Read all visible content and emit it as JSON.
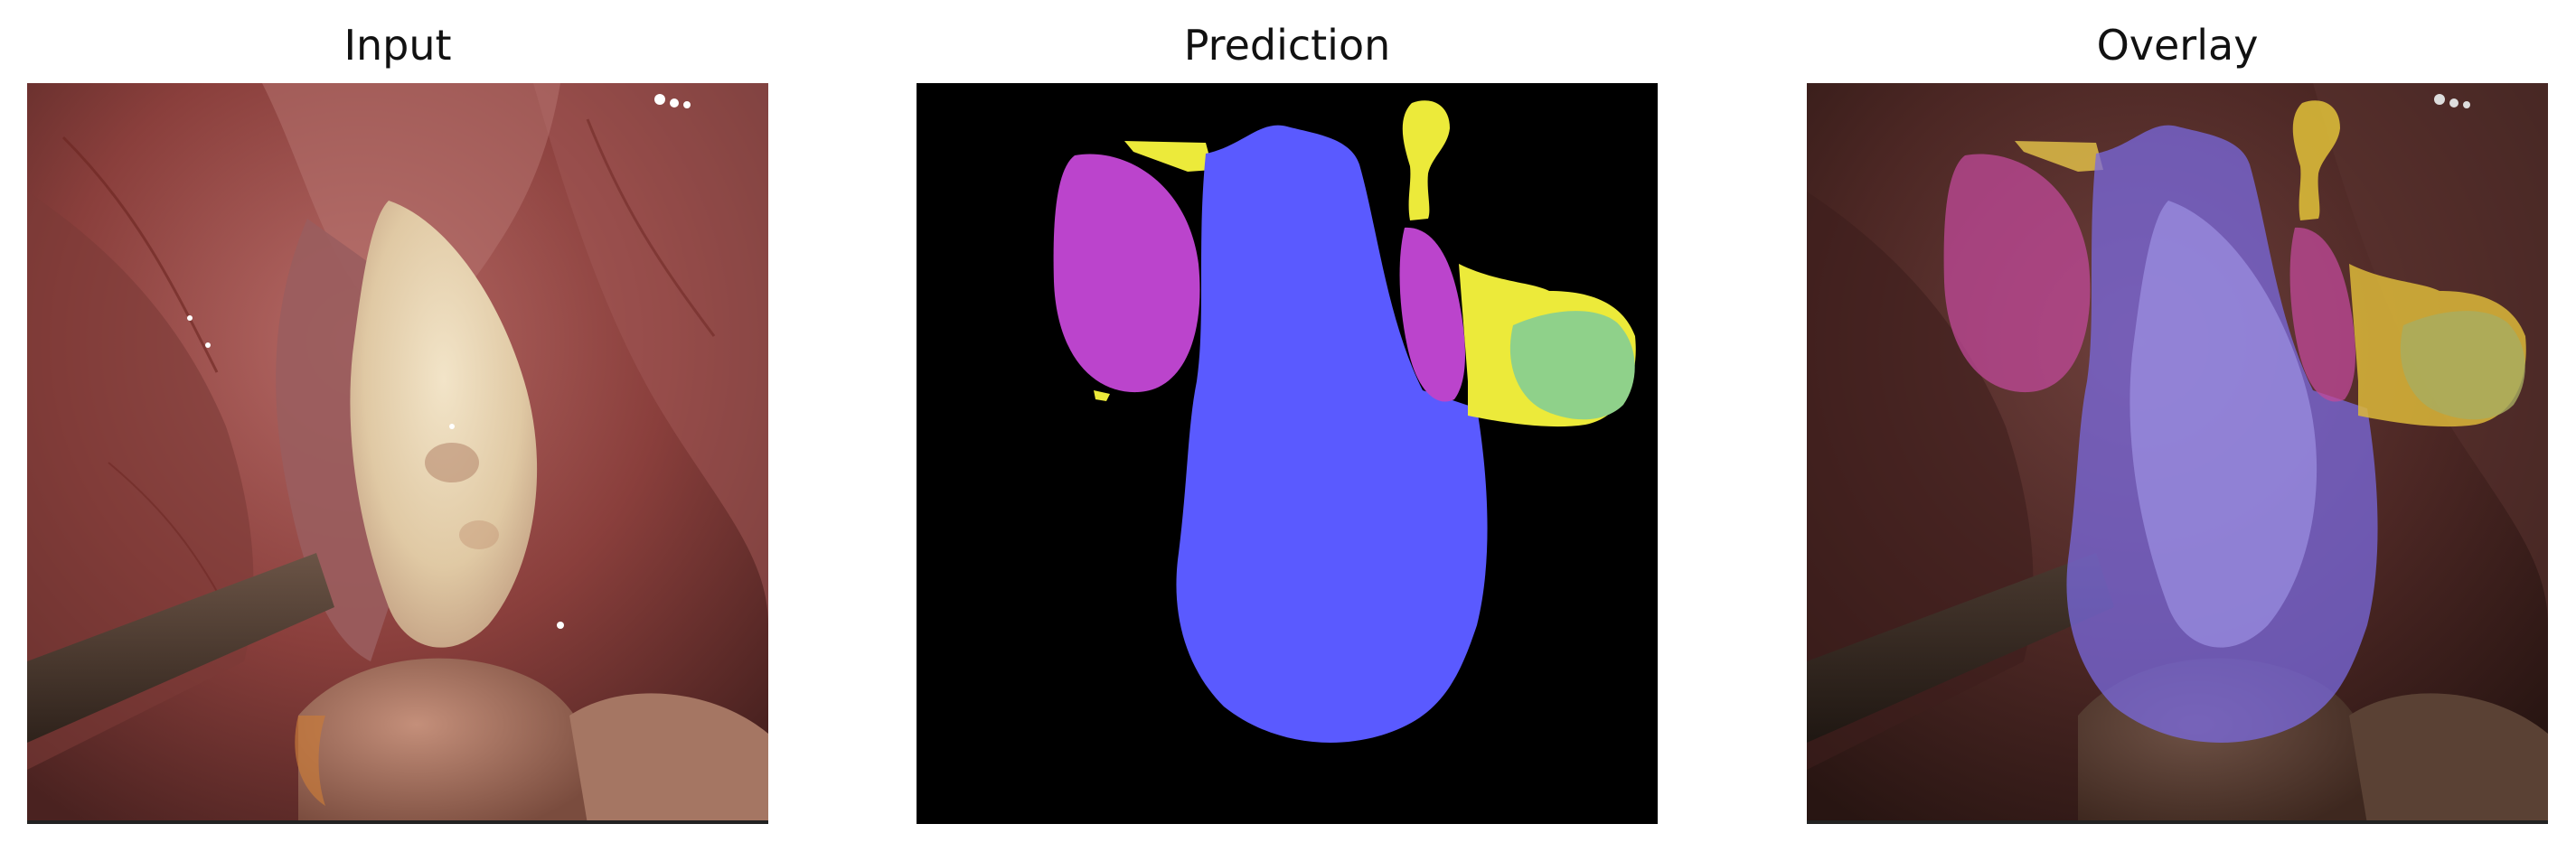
{
  "panels": [
    {
      "title": "Input"
    },
    {
      "title": "Prediction"
    },
    {
      "title": "Overlay"
    }
  ],
  "colors": {
    "background_mask": "#000000",
    "uterus_class": "#5a5aff",
    "ovary_class": "#bb44cc",
    "tube_class": "#ecea3a",
    "cyst_class": "#8fd18a",
    "tissue_base": "#9a4a4a",
    "tissue_dark": "#3a1e18",
    "lesion_cream": "#e8d6b4",
    "instrument_brown": "#4d3b30"
  }
}
